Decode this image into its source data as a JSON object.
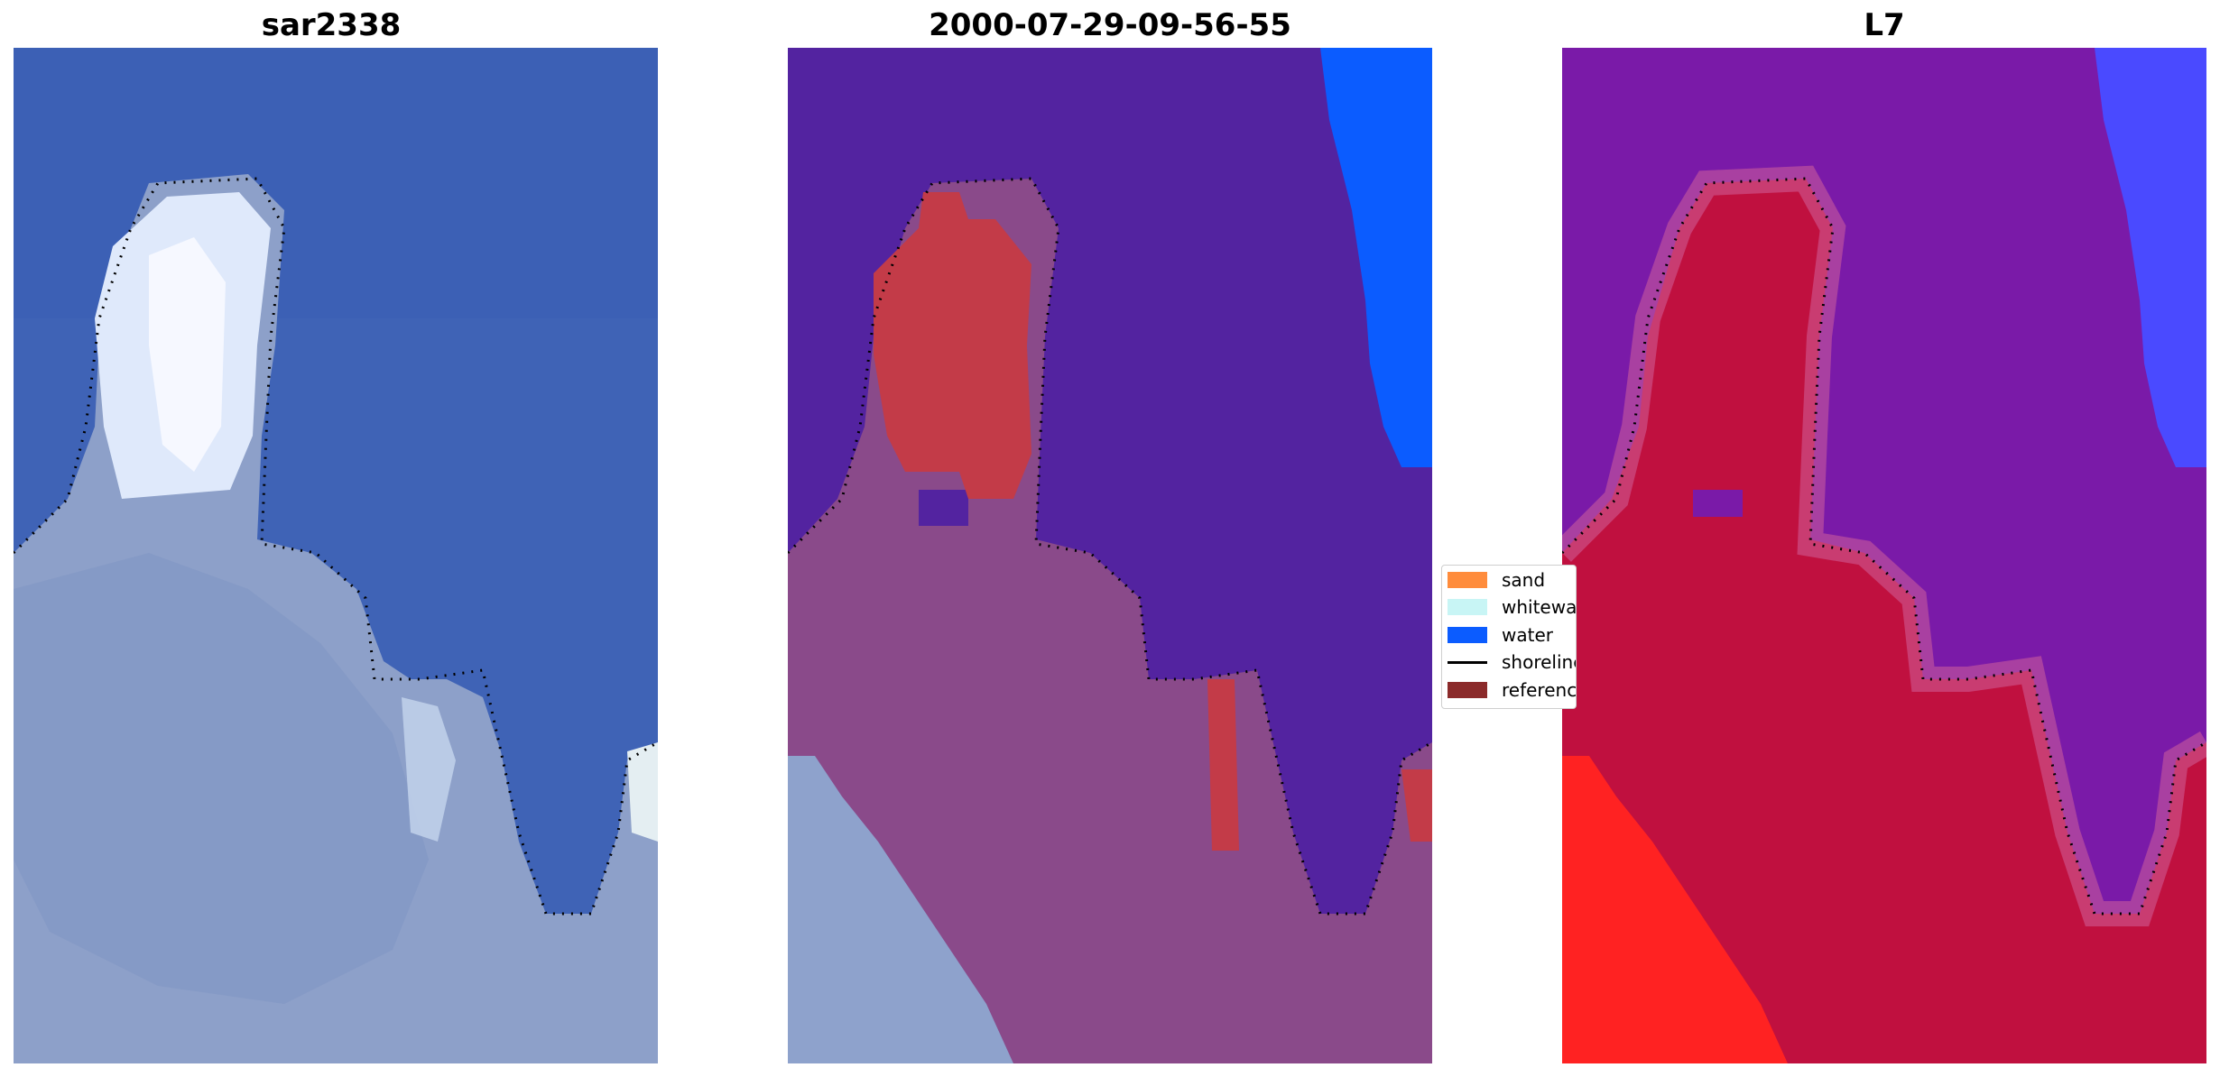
{
  "panels": [
    {
      "title": "sar2338"
    },
    {
      "title": "2000-07-29-09-56-55"
    },
    {
      "title": "L7"
    }
  ],
  "legend": {
    "items": [
      {
        "label": "sand",
        "color": "#ff8c3c",
        "kind": "patch"
      },
      {
        "label": "whitewater",
        "color": "#c8f5f5",
        "kind": "patch"
      },
      {
        "label": "water",
        "color": "#0b5cff",
        "kind": "patch"
      },
      {
        "label": "shoreline",
        "color": "#000000",
        "kind": "line"
      },
      {
        "label": "reference shoreline",
        "color": "#8b2a2a",
        "kind": "patch"
      }
    ]
  },
  "colors": {
    "ocean_rgb": "#3d63b8",
    "land_rgb": "#8ea2cc",
    "cloud": "#eef3ff",
    "class_water": "#5223a0",
    "class_land": "#8a4a8a",
    "class_red": "#c33b48",
    "deep_blue": "#0b5cff",
    "prob_water": "#7a1aa8",
    "prob_land": "#c0103f",
    "prob_bright_red": "#ff2020",
    "prob_blue": "#4a4aff"
  }
}
